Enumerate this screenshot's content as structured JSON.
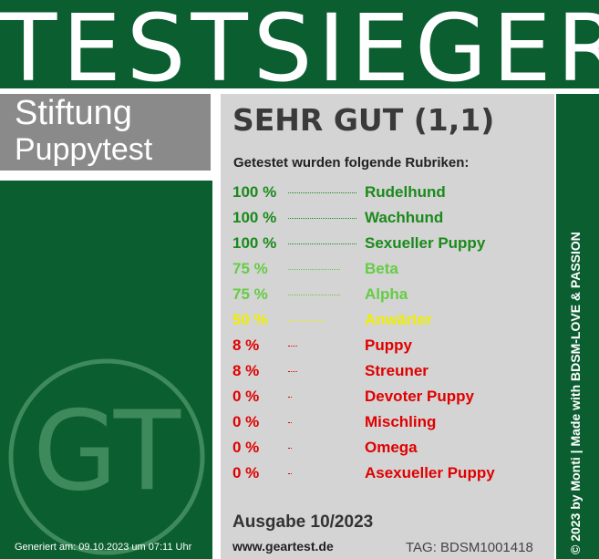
{
  "banner": {
    "title": "TESTSIEGER"
  },
  "brand": {
    "line1": "Stiftung",
    "line2": "Puppytest",
    "logo": "GT",
    "generated": "Generiert am: 09.10.2023 um 07:11 Uhr"
  },
  "panel": {
    "grade": "SEHR GUT (1,1)",
    "intro": "Getestet wurden folgende Rubriken:",
    "rows": [
      {
        "value": 100,
        "value_label": "100 %",
        "name": "Rudelhund",
        "color": "#1a8a1a"
      },
      {
        "value": 100,
        "value_label": "100 %",
        "name": "Wachhund",
        "color": "#1a8a1a"
      },
      {
        "value": 100,
        "value_label": "100 %",
        "name": "Sexueller Puppy",
        "color": "#1a8a1a"
      },
      {
        "value": 75,
        "value_label": "75 %",
        "name": "Beta",
        "color": "#66cc44"
      },
      {
        "value": 75,
        "value_label": "75 %",
        "name": "Alpha",
        "color": "#66cc44"
      },
      {
        "value": 50,
        "value_label": "50 %",
        "name": "Anwärter",
        "color": "#eeee00"
      },
      {
        "value": 8,
        "value_label": "8 %",
        "name": "Puppy",
        "color": "#e00000"
      },
      {
        "value": 8,
        "value_label": "8 %",
        "name": "Streuner",
        "color": "#e00000"
      },
      {
        "value": 0,
        "value_label": "0 %",
        "name": "Devoter Puppy",
        "color": "#e00000"
      },
      {
        "value": 0,
        "value_label": "0 %",
        "name": "Mischling",
        "color": "#e00000"
      },
      {
        "value": 0,
        "value_label": "0 %",
        "name": "Omega",
        "color": "#e00000"
      },
      {
        "value": 0,
        "value_label": "0 %",
        "name": "Asexueller Puppy",
        "color": "#e00000"
      }
    ],
    "issue": "Ausgabe 10/2023",
    "website": "www.geartest.de",
    "tag": "TAG: BDSM1001418"
  },
  "sidebar": {
    "copyright": "© 2023 by Monti | Made with BDSM-LOVE & PASSION"
  }
}
